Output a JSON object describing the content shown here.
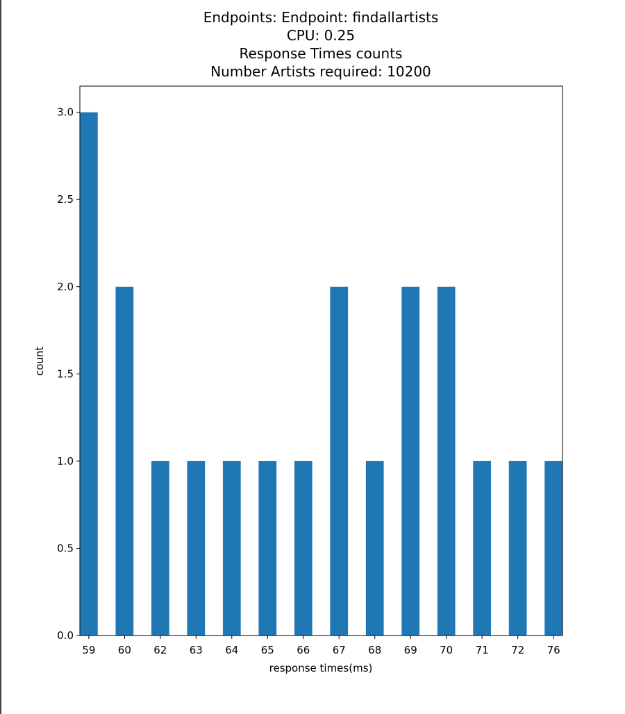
{
  "chart_data": {
    "type": "bar",
    "title": [
      "Endpoints: Endpoint: findallartists",
      "CPU: 0.25",
      "Response Times counts",
      "Number Artists required: 10200"
    ],
    "xlabel": "response times(ms)",
    "ylabel": "count",
    "categories": [
      "59",
      "60",
      "62",
      "63",
      "64",
      "65",
      "66",
      "67",
      "68",
      "69",
      "70",
      "71",
      "72",
      "76"
    ],
    "values": [
      3,
      2,
      1,
      1,
      1,
      1,
      1,
      2,
      1,
      2,
      2,
      1,
      1,
      1
    ],
    "ylim": [
      0,
      3.15
    ],
    "yticks": [
      "0.0",
      "0.5",
      "1.0",
      "1.5",
      "2.0",
      "2.5",
      "3.0"
    ],
    "bar_color": "#1f77b4",
    "grid": false,
    "legend": "none"
  }
}
